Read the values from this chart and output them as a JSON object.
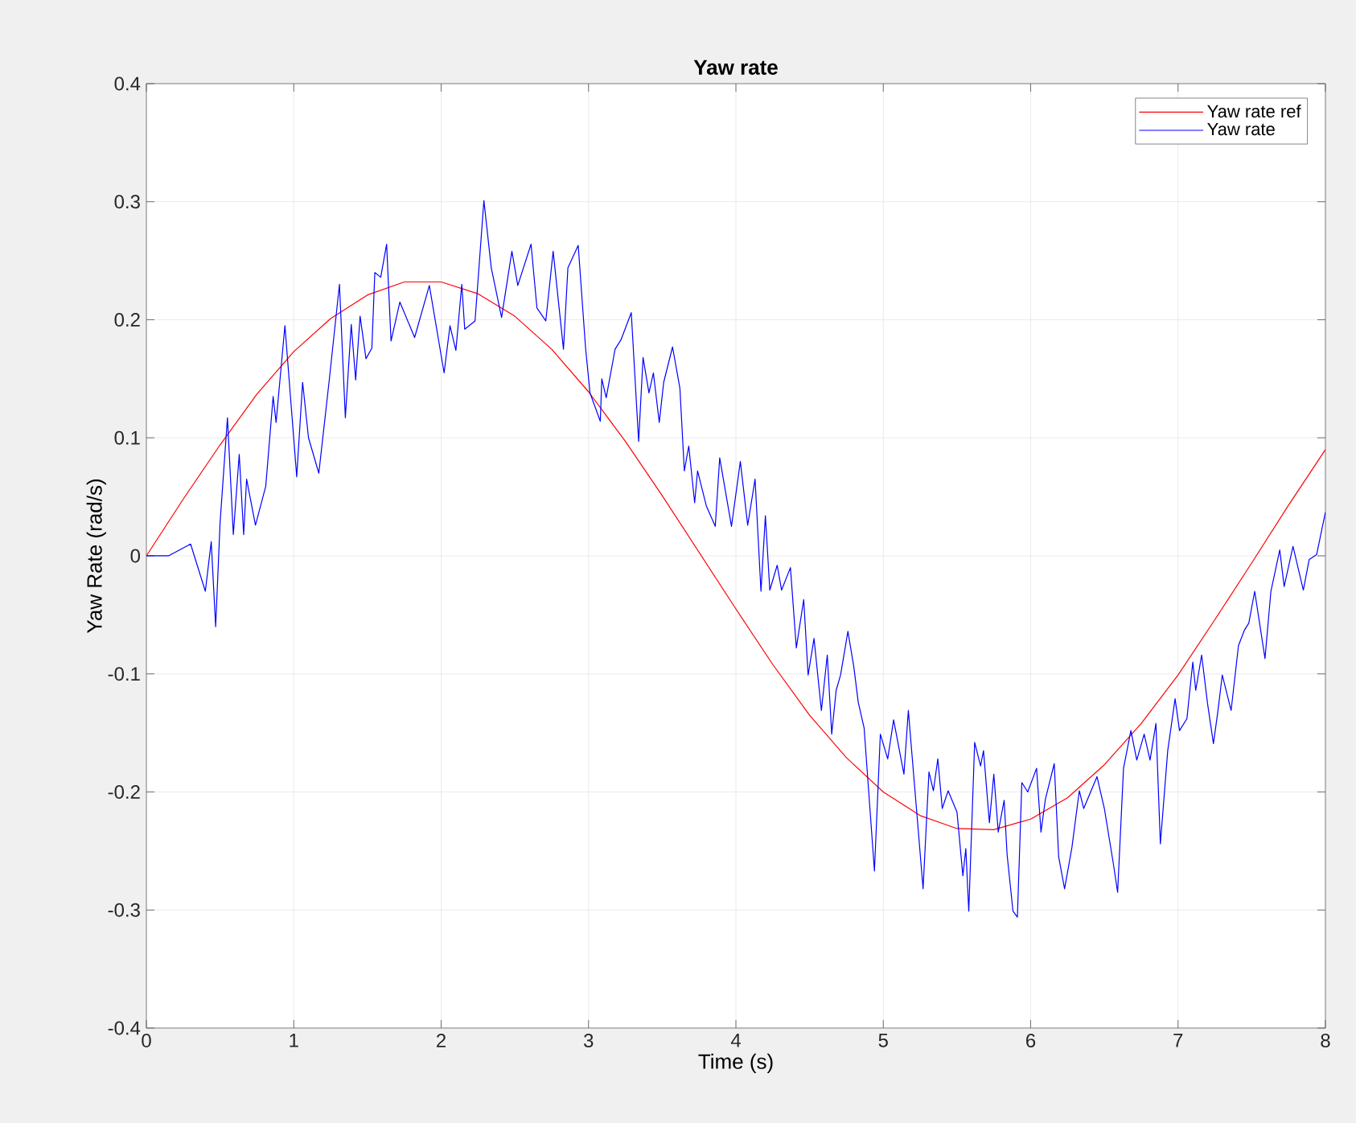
{
  "chart_data": {
    "type": "line",
    "title": "Yaw rate",
    "xlabel": "Time (s)",
    "ylabel": "Yaw Rate (rad/s)",
    "xlim": [
      0,
      8
    ],
    "ylim": [
      -0.4,
      0.4
    ],
    "xticks": [
      0,
      1,
      2,
      3,
      4,
      5,
      6,
      7,
      8
    ],
    "yticks": [
      -0.4,
      -0.3,
      -0.2,
      -0.1,
      0,
      0.1,
      0.2,
      0.3,
      0.4
    ],
    "grid": true,
    "legend": "top right",
    "marker": "none",
    "line_style": "solid",
    "series": [
      {
        "name": "Yaw rate ref",
        "color": "#ff0000",
        "x": [
          0,
          0.25,
          0.5,
          0.75,
          1.0,
          1.25,
          1.5,
          1.75,
          2.0,
          2.25,
          2.5,
          2.75,
          3.0,
          3.25,
          3.5,
          3.75,
          4.0,
          4.25,
          4.5,
          4.75,
          5.0,
          5.25,
          5.5,
          5.75,
          6.0,
          6.25,
          6.5,
          6.75,
          7.0,
          7.25,
          7.5,
          7.75,
          8.0
        ],
        "values": [
          0,
          0.048,
          0.094,
          0.137,
          0.173,
          0.201,
          0.221,
          0.232,
          0.232,
          0.222,
          0.203,
          0.175,
          0.139,
          0.097,
          0.051,
          0.003,
          -0.045,
          -0.092,
          -0.135,
          -0.171,
          -0.2,
          -0.22,
          -0.231,
          -0.232,
          -0.223,
          -0.205,
          -0.177,
          -0.142,
          -0.101,
          -0.054,
          -0.006,
          0.043,
          0.09
        ]
      },
      {
        "name": "Yaw rate",
        "color": "#0000ff",
        "x": [
          0,
          0.15,
          0.3,
          0.4,
          0.44,
          0.47,
          0.5,
          0.55,
          0.59,
          0.63,
          0.66,
          0.68,
          0.74,
          0.81,
          0.86,
          0.88,
          0.94,
          1.02,
          1.06,
          1.1,
          1.17,
          1.24,
          1.31,
          1.35,
          1.39,
          1.42,
          1.45,
          1.49,
          1.53,
          1.55,
          1.59,
          1.63,
          1.66,
          1.72,
          1.82,
          1.92,
          2.02,
          2.06,
          2.1,
          2.14,
          2.16,
          2.23,
          2.29,
          2.34,
          2.41,
          2.48,
          2.52,
          2.61,
          2.65,
          2.71,
          2.76,
          2.83,
          2.86,
          2.93,
          2.98,
          3.01,
          3.08,
          3.09,
          3.12,
          3.18,
          3.22,
          3.29,
          3.34,
          3.37,
          3.41,
          3.44,
          3.48,
          3.51,
          3.57,
          3.62,
          3.65,
          3.68,
          3.72,
          3.74,
          3.8,
          3.86,
          3.89,
          3.97,
          4.03,
          4.08,
          4.13,
          4.17,
          4.2,
          4.23,
          4.28,
          4.31,
          4.37,
          4.41,
          4.46,
          4.49,
          4.53,
          4.58,
          4.62,
          4.65,
          4.68,
          4.71,
          4.76,
          4.8,
          4.83,
          4.87,
          4.94,
          4.98,
          5.03,
          5.07,
          5.14,
          5.17,
          5.27,
          5.31,
          5.34,
          5.37,
          5.4,
          5.44,
          5.5,
          5.54,
          5.56,
          5.58,
          5.62,
          5.66,
          5.68,
          5.72,
          5.75,
          5.78,
          5.82,
          5.84,
          5.88,
          5.91,
          5.94,
          5.98,
          6.04,
          6.07,
          6.1,
          6.16,
          6.19,
          6.23,
          6.28,
          6.33,
          6.36,
          6.45,
          6.5,
          6.56,
          6.59,
          6.63,
          6.68,
          6.72,
          6.77,
          6.81,
          6.85,
          6.88,
          6.93,
          6.98,
          7.01,
          7.06,
          7.1,
          7.12,
          7.16,
          7.2,
          7.24,
          7.27,
          7.3,
          7.36,
          7.41,
          7.45,
          7.48,
          7.52,
          7.59,
          7.63,
          7.69,
          7.72,
          7.78,
          7.85,
          7.89,
          7.94,
          8.0
        ],
        "values": [
          0,
          0.0,
          0.01,
          -0.03,
          0.012,
          -0.06,
          0.028,
          0.117,
          0.018,
          0.086,
          0.018,
          0.065,
          0.026,
          0.059,
          0.135,
          0.113,
          0.195,
          0.067,
          0.147,
          0.1,
          0.07,
          0.148,
          0.23,
          0.117,
          0.196,
          0.149,
          0.203,
          0.167,
          0.176,
          0.24,
          0.236,
          0.264,
          0.182,
          0.215,
          0.185,
          0.229,
          0.155,
          0.195,
          0.174,
          0.23,
          0.192,
          0.199,
          0.301,
          0.244,
          0.202,
          0.258,
          0.229,
          0.264,
          0.21,
          0.199,
          0.258,
          0.175,
          0.244,
          0.263,
          0.176,
          0.138,
          0.114,
          0.15,
          0.134,
          0.175,
          0.183,
          0.206,
          0.097,
          0.168,
          0.138,
          0.155,
          0.113,
          0.147,
          0.177,
          0.142,
          0.072,
          0.093,
          0.045,
          0.072,
          0.042,
          0.025,
          0.083,
          0.025,
          0.08,
          0.026,
          0.065,
          -0.03,
          0.034,
          -0.029,
          -0.008,
          -0.029,
          -0.01,
          -0.078,
          -0.037,
          -0.101,
          -0.07,
          -0.131,
          -0.084,
          -0.151,
          -0.114,
          -0.101,
          -0.064,
          -0.094,
          -0.124,
          -0.146,
          -0.267,
          -0.151,
          -0.172,
          -0.139,
          -0.185,
          -0.131,
          -0.282,
          -0.183,
          -0.199,
          -0.172,
          -0.214,
          -0.199,
          -0.217,
          -0.271,
          -0.248,
          -0.301,
          -0.158,
          -0.178,
          -0.165,
          -0.226,
          -0.185,
          -0.234,
          -0.207,
          -0.253,
          -0.301,
          -0.306,
          -0.192,
          -0.2,
          -0.18,
          -0.234,
          -0.206,
          -0.176,
          -0.255,
          -0.282,
          -0.247,
          -0.199,
          -0.214,
          -0.187,
          -0.214,
          -0.26,
          -0.285,
          -0.18,
          -0.148,
          -0.173,
          -0.151,
          -0.173,
          -0.142,
          -0.244,
          -0.165,
          -0.121,
          -0.148,
          -0.138,
          -0.09,
          -0.114,
          -0.084,
          -0.125,
          -0.159,
          -0.132,
          -0.101,
          -0.131,
          -0.076,
          -0.063,
          -0.057,
          -0.03,
          -0.087,
          -0.03,
          0.005,
          -0.026,
          0.008,
          -0.029,
          -0.003,
          0.001,
          0.037
        ]
      }
    ]
  }
}
